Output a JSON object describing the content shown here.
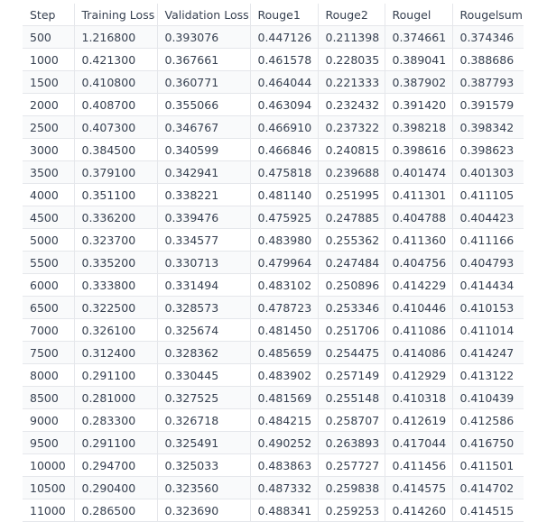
{
  "table": {
    "headers": [
      "Step",
      "Training Loss",
      "Validation Loss",
      "Rouge1",
      "Rouge2",
      "Rougel",
      "Rougelsum"
    ],
    "rows": [
      [
        "500",
        "1.216800",
        "0.393076",
        "0.447126",
        "0.211398",
        "0.374661",
        "0.374346"
      ],
      [
        "1000",
        "0.421300",
        "0.367661",
        "0.461578",
        "0.228035",
        "0.389041",
        "0.388686"
      ],
      [
        "1500",
        "0.410800",
        "0.360771",
        "0.464044",
        "0.221333",
        "0.387902",
        "0.387793"
      ],
      [
        "2000",
        "0.408700",
        "0.355066",
        "0.463094",
        "0.232432",
        "0.391420",
        "0.391579"
      ],
      [
        "2500",
        "0.407300",
        "0.346767",
        "0.466910",
        "0.237322",
        "0.398218",
        "0.398342"
      ],
      [
        "3000",
        "0.384500",
        "0.340599",
        "0.466846",
        "0.240815",
        "0.398616",
        "0.398623"
      ],
      [
        "3500",
        "0.379100",
        "0.342941",
        "0.475818",
        "0.239688",
        "0.401474",
        "0.401303"
      ],
      [
        "4000",
        "0.351100",
        "0.338221",
        "0.481140",
        "0.251995",
        "0.411301",
        "0.411105"
      ],
      [
        "4500",
        "0.336200",
        "0.339476",
        "0.475925",
        "0.247885",
        "0.404788",
        "0.404423"
      ],
      [
        "5000",
        "0.323700",
        "0.334577",
        "0.483980",
        "0.255362",
        "0.411360",
        "0.411166"
      ],
      [
        "5500",
        "0.335200",
        "0.330713",
        "0.479964",
        "0.247484",
        "0.404756",
        "0.404793"
      ],
      [
        "6000",
        "0.333800",
        "0.331494",
        "0.483102",
        "0.250896",
        "0.414229",
        "0.414434"
      ],
      [
        "6500",
        "0.322500",
        "0.328573",
        "0.478723",
        "0.253346",
        "0.410446",
        "0.410153"
      ],
      [
        "7000",
        "0.326100",
        "0.325674",
        "0.481450",
        "0.251706",
        "0.411086",
        "0.411014"
      ],
      [
        "7500",
        "0.312400",
        "0.328362",
        "0.485659",
        "0.254475",
        "0.414086",
        "0.414247"
      ],
      [
        "8000",
        "0.291100",
        "0.330445",
        "0.483902",
        "0.257149",
        "0.412929",
        "0.413122"
      ],
      [
        "8500",
        "0.281000",
        "0.327525",
        "0.481569",
        "0.255148",
        "0.410318",
        "0.410439"
      ],
      [
        "9000",
        "0.283300",
        "0.326718",
        "0.484215",
        "0.258707",
        "0.412619",
        "0.412586"
      ],
      [
        "9500",
        "0.291100",
        "0.325491",
        "0.490252",
        "0.263893",
        "0.417044",
        "0.416750"
      ],
      [
        "10000",
        "0.294700",
        "0.325033",
        "0.483863",
        "0.257727",
        "0.411456",
        "0.411501"
      ],
      [
        "10500",
        "0.290400",
        "0.323560",
        "0.487332",
        "0.259838",
        "0.414575",
        "0.414702"
      ],
      [
        "11000",
        "0.286500",
        "0.323690",
        "0.488341",
        "0.259253",
        "0.414260",
        "0.414515"
      ]
    ]
  }
}
